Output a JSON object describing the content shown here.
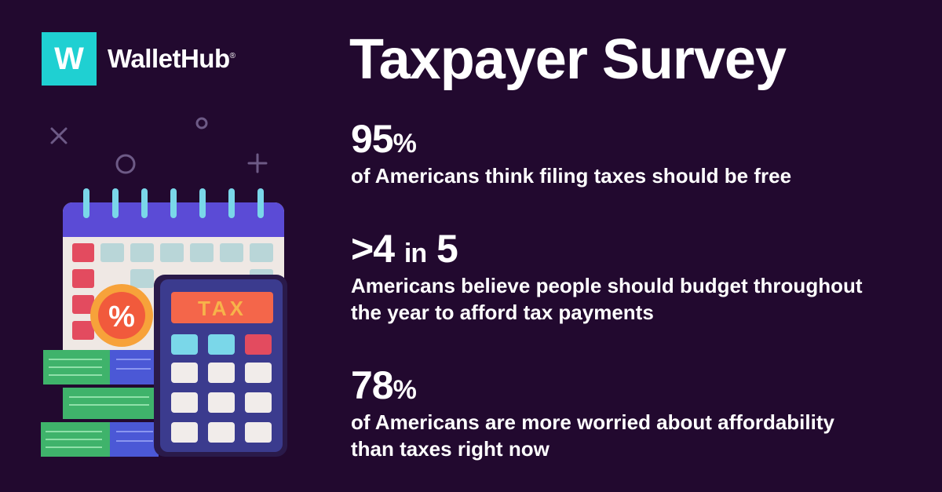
{
  "brand": {
    "logo_letter": "W",
    "name": "WalletHub",
    "trademark": "®"
  },
  "title": "Taxpayer Survey",
  "stats": [
    {
      "figure_main": "95",
      "figure_suffix": "%",
      "description_lines": [
        "of Americans think filing taxes should be free"
      ]
    },
    {
      "figure_main": ">4",
      "figure_mid": "in",
      "figure_end": "5",
      "description_lines": [
        "Americans believe people should budget throughout",
        "the year to afford tax payments"
      ]
    },
    {
      "figure_main": "78",
      "figure_suffix": "%",
      "description_lines": [
        "of Americans are more worried about affordability",
        "than taxes right now"
      ]
    }
  ],
  "illustration": {
    "calculator_display": "TAX",
    "badge_symbol": "%",
    "colors": {
      "background": "#22092f",
      "logo": "#1fd0d2",
      "calendar_header": "#5b4bd6",
      "calculator": "#3b3b8e",
      "display": "#f4664a",
      "money": "#3fb36b"
    }
  }
}
